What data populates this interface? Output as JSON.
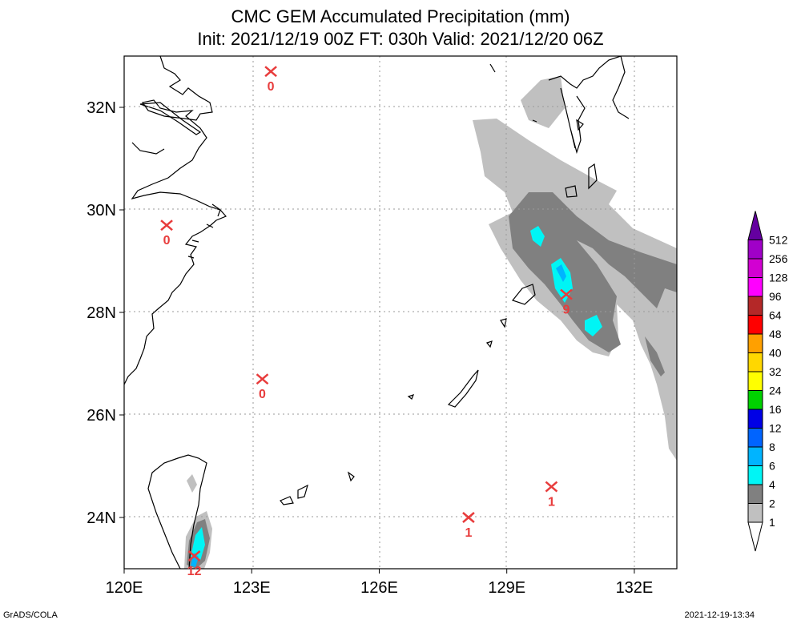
{
  "title": {
    "line1": "CMC GEM Accumulated Precipitation (mm)",
    "line2": "Init: 2021/12/19 00Z  FT: 030h  Valid: 2021/12/20 06Z"
  },
  "axes": {
    "x_ticks": [
      {
        "value": 120,
        "label": "120E"
      },
      {
        "value": 123,
        "label": "123E"
      },
      {
        "value": 126,
        "label": "126E"
      },
      {
        "value": 129,
        "label": "129E"
      },
      {
        "value": 132,
        "label": "132E"
      }
    ],
    "y_ticks": [
      {
        "value": 24,
        "label": "24N"
      },
      {
        "value": 26,
        "label": "26N"
      },
      {
        "value": 28,
        "label": "28N"
      },
      {
        "value": 30,
        "label": "30N"
      },
      {
        "value": 32,
        "label": "32N"
      }
    ],
    "lon_range": [
      120,
      133
    ],
    "lat_range": [
      23,
      33
    ],
    "grid": true
  },
  "colorbar": {
    "levels": [
      "1",
      "2",
      "4",
      "6",
      "8",
      "12",
      "16",
      "24",
      "32",
      "40",
      "48",
      "64",
      "96",
      "128",
      "256",
      "512"
    ],
    "colors": [
      "#ffffff",
      "#c0c0c0",
      "#808080",
      "#00f5f5",
      "#00b4ff",
      "#0064ff",
      "#0000e6",
      "#00d200",
      "#ffff00",
      "#ffd700",
      "#ffa000",
      "#ff0000",
      "#b42828",
      "#ff00ff",
      "#d200d2",
      "#a000c8",
      "#6400a0"
    ]
  },
  "stations": [
    {
      "lon": 123.45,
      "lat": 32.7,
      "value": "0"
    },
    {
      "lon": 121.0,
      "lat": 29.7,
      "value": "0"
    },
    {
      "lon": 123.25,
      "lat": 26.7,
      "value": "0"
    },
    {
      "lon": 130.4,
      "lat": 28.35,
      "value": "9"
    },
    {
      "lon": 130.05,
      "lat": 24.6,
      "value": "1"
    },
    {
      "lon": 128.1,
      "lat": 24.0,
      "value": "1"
    },
    {
      "lon": 121.65,
      "lat": 23.25,
      "value": "12"
    }
  ],
  "footer": {
    "left": "GrADS/COLA",
    "right": "2021-12-19-13:34"
  }
}
